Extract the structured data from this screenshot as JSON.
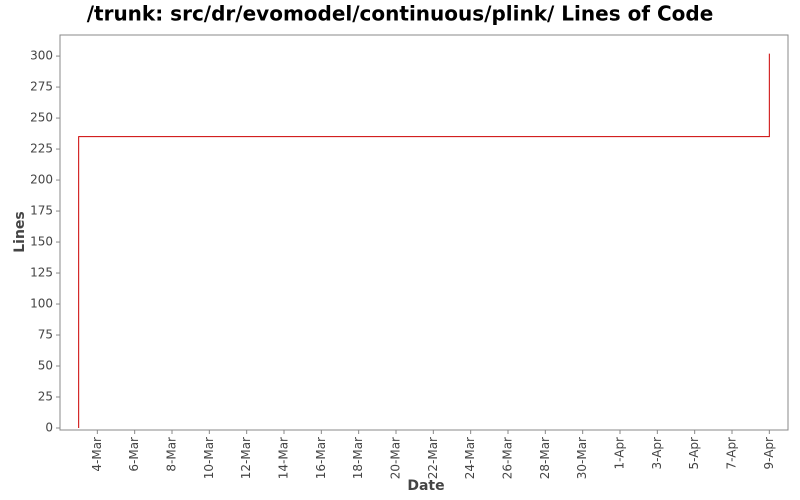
{
  "chart_data": {
    "type": "line",
    "title": "/trunk: src/dr/evomodel/continuous/plink/ Lines of Code",
    "x_label": "Date",
    "y_label": "Lines",
    "x": [
      "3-Mar",
      "3-Mar",
      "9-Apr",
      "9-Apr"
    ],
    "values": [
      0,
      235,
      235,
      302
    ],
    "color": "#cc0000",
    "xlim": [
      "2-Mar",
      "10-Apr"
    ],
    "xticks": [
      "4-Mar",
      "6-Mar",
      "8-Mar",
      "10-Mar",
      "12-Mar",
      "14-Mar",
      "16-Mar",
      "18-Mar",
      "20-Mar",
      "22-Mar",
      "24-Mar",
      "26-Mar",
      "28-Mar",
      "30-Mar",
      "1-Apr",
      "3-Apr",
      "5-Apr",
      "7-Apr",
      "9-Apr"
    ],
    "ylim": [
      0,
      317
    ],
    "yticks": [
      0,
      25,
      50,
      75,
      100,
      125,
      150,
      175,
      200,
      225,
      250,
      275,
      300
    ],
    "grid": false
  }
}
